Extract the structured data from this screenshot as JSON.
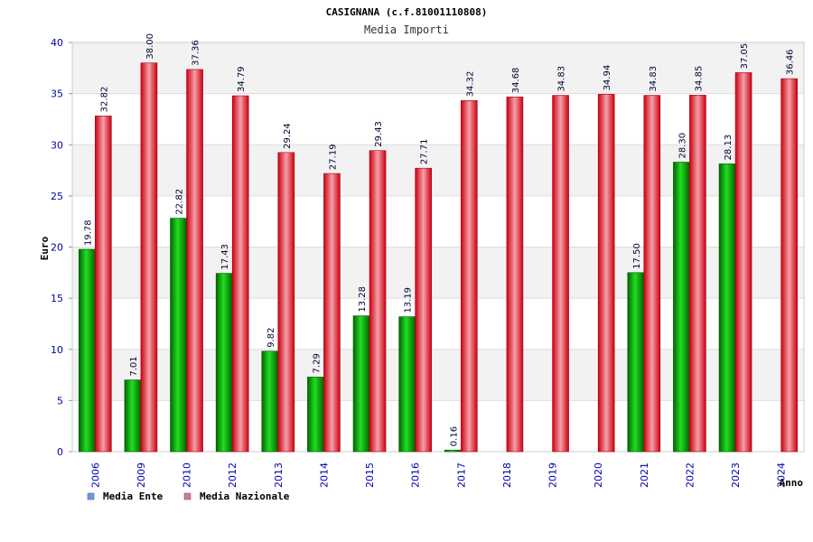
{
  "chart_data": {
    "type": "bar",
    "title": "CASIGNANA (c.f.81001110808)",
    "subtitle": "Media Importi",
    "ylabel": "Euro",
    "xlabel": "Anno",
    "ylim": [
      0,
      40
    ],
    "yticks": [
      0,
      5,
      10,
      15,
      20,
      25,
      30,
      35,
      40
    ],
    "grid": true,
    "legend_position": "bottom-left",
    "categories": [
      "2006",
      "2009",
      "2010",
      "2012",
      "2013",
      "2014",
      "2015",
      "2016",
      "2017",
      "2018",
      "2019",
      "2020",
      "2021",
      "2022",
      "2023",
      "2024"
    ],
    "series": [
      {
        "name": "Media Ente",
        "color": "#00aa00",
        "legend_color": "#6699ee",
        "values": [
          19.78,
          7.01,
          22.82,
          17.43,
          9.82,
          7.29,
          13.28,
          13.19,
          0.16,
          null,
          null,
          null,
          17.5,
          28.3,
          28.13,
          null
        ],
        "labels": [
          "19.78",
          "7.01",
          "22.82",
          "17.43",
          "9.82",
          "7.29",
          "13.28",
          "13.19",
          "0.16",
          "",
          "",
          "",
          "17.50",
          "28.30",
          "28.13",
          ""
        ]
      },
      {
        "name": "Media Nazionale",
        "color": "#dd1122",
        "legend_color": "#dd7799",
        "values": [
          32.82,
          38.0,
          37.36,
          34.79,
          29.24,
          27.19,
          29.43,
          27.71,
          34.32,
          34.68,
          34.83,
          34.94,
          34.83,
          34.85,
          37.05,
          36.46
        ],
        "labels": [
          "32.82",
          "38.00",
          "37.36",
          "34.79",
          "29.24",
          "27.19",
          "29.43",
          "27.71",
          "34.32",
          "34.68",
          "34.83",
          "34.94",
          "34.83",
          "34.85",
          "37.05",
          "36.46"
        ]
      }
    ]
  }
}
